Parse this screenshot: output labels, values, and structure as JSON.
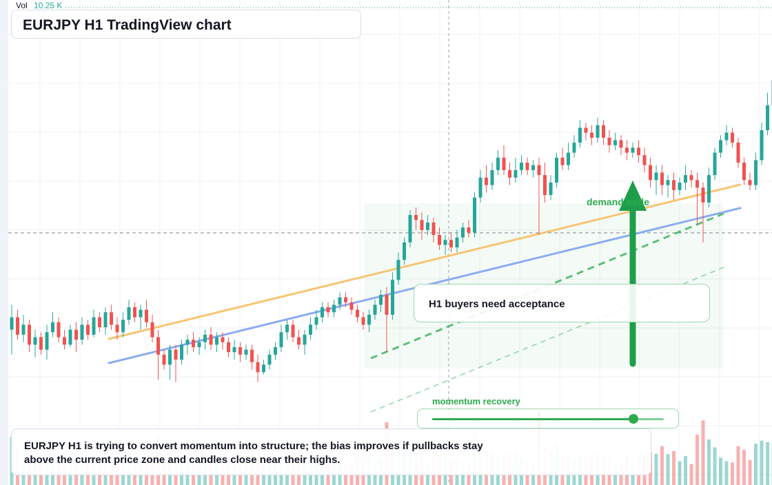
{
  "volume": {
    "label": "Vol",
    "value": "10.25 K"
  },
  "title": "EURJPY H1 TradingView chart",
  "annotations": {
    "demand_label": "demand node",
    "callout": "H1 buyers need acceptance",
    "momentum_label": "momentum recovery",
    "momentum_level": 0.87
  },
  "note": {
    "line1": "EURJPY H1 is trying to convert momentum into structure; the bias improves if pullbacks stay",
    "line2": "above the current price zone and candles close near their highs."
  },
  "colors": {
    "up": "#26a69a",
    "down": "#ef5350",
    "orange_line": "#f5c26b",
    "blue_line": "#7fa3ee",
    "green": "#2eaa4f",
    "arrow": "#1e9e4a"
  },
  "chart_data": {
    "type": "candlestick",
    "symbol": "EURJPY",
    "timeframe": "H1",
    "price_scale": "relative",
    "candles": [
      [
        50,
        55,
        40,
        60
      ],
      [
        55,
        48,
        46,
        58
      ],
      [
        48,
        52,
        45,
        56
      ],
      [
        52,
        44,
        41,
        54
      ],
      [
        44,
        47,
        39,
        50
      ],
      [
        47,
        42,
        40,
        49
      ],
      [
        42,
        49,
        38,
        52
      ],
      [
        49,
        53,
        47,
        57
      ],
      [
        53,
        47,
        45,
        55
      ],
      [
        47,
        44,
        42,
        50
      ],
      [
        44,
        50,
        43,
        52
      ],
      [
        50,
        46,
        41,
        53
      ],
      [
        46,
        52,
        44,
        55
      ],
      [
        52,
        48,
        46,
        54
      ],
      [
        48,
        55,
        47,
        58
      ],
      [
        55,
        51,
        49,
        57
      ],
      [
        51,
        57,
        48,
        59
      ],
      [
        57,
        52,
        50,
        60
      ],
      [
        52,
        49,
        46,
        55
      ],
      [
        49,
        54,
        47,
        57
      ],
      [
        54,
        59,
        52,
        62
      ],
      [
        59,
        55,
        53,
        61
      ],
      [
        55,
        58,
        50,
        60
      ],
      [
        58,
        53,
        51,
        62
      ],
      [
        53,
        47,
        45,
        56
      ],
      [
        47,
        40,
        30,
        50
      ],
      [
        40,
        36,
        34,
        42
      ],
      [
        36,
        42,
        30,
        44
      ],
      [
        42,
        38,
        29,
        44
      ],
      [
        38,
        44,
        36,
        46
      ],
      [
        44,
        46,
        40,
        48
      ],
      [
        46,
        43,
        41,
        49
      ],
      [
        43,
        45,
        40,
        47
      ],
      [
        45,
        48,
        42,
        50
      ],
      [
        48,
        44,
        42,
        51
      ],
      [
        44,
        47,
        41,
        49
      ],
      [
        47,
        45,
        42,
        49
      ],
      [
        45,
        41,
        39,
        47
      ],
      [
        41,
        43,
        38,
        46
      ],
      [
        43,
        40,
        37,
        45
      ],
      [
        40,
        42,
        38,
        44
      ],
      [
        42,
        37,
        34,
        44
      ],
      [
        37,
        33,
        29,
        40
      ],
      [
        33,
        36,
        32,
        38
      ],
      [
        36,
        40,
        34,
        42
      ],
      [
        40,
        43,
        38,
        45
      ],
      [
        43,
        49,
        41,
        52
      ],
      [
        49,
        52,
        46,
        54
      ],
      [
        52,
        47,
        45,
        54
      ],
      [
        47,
        44,
        42,
        50
      ],
      [
        44,
        48,
        40,
        50
      ],
      [
        48,
        52,
        46,
        55
      ],
      [
        52,
        55,
        50,
        58
      ],
      [
        55,
        59,
        53,
        61
      ],
      [
        59,
        57,
        55,
        61
      ],
      [
        57,
        60,
        55,
        62
      ],
      [
        60,
        63,
        58,
        65
      ],
      [
        63,
        61,
        59,
        65
      ],
      [
        61,
        58,
        56,
        63
      ],
      [
        58,
        55,
        53,
        60
      ],
      [
        55,
        52,
        50,
        57
      ],
      [
        52,
        56,
        49,
        58
      ],
      [
        56,
        60,
        54,
        62
      ],
      [
        60,
        64,
        57,
        66
      ],
      [
        64,
        56,
        41,
        67
      ],
      [
        56,
        70,
        54,
        73
      ],
      [
        70,
        78,
        68,
        81
      ],
      [
        78,
        85,
        76,
        87
      ],
      [
        85,
        96,
        83,
        98
      ],
      [
        96,
        94,
        90,
        99
      ],
      [
        94,
        90,
        86,
        97
      ],
      [
        90,
        93,
        88,
        96
      ],
      [
        93,
        88,
        85,
        95
      ],
      [
        88,
        84,
        82,
        91
      ],
      [
        84,
        86,
        80,
        88
      ],
      [
        86,
        83,
        81,
        89
      ],
      [
        83,
        87,
        81,
        90
      ],
      [
        87,
        91,
        85,
        93
      ],
      [
        91,
        89,
        87,
        94
      ],
      [
        89,
        103,
        87,
        105
      ],
      [
        103,
        111,
        101,
        114
      ],
      [
        111,
        108,
        105,
        116
      ],
      [
        108,
        114,
        106,
        117
      ],
      [
        114,
        119,
        112,
        122
      ],
      [
        119,
        114,
        112,
        124
      ],
      [
        114,
        111,
        108,
        117
      ],
      [
        111,
        114,
        109,
        119
      ],
      [
        114,
        117,
        112,
        120
      ],
      [
        117,
        114,
        112,
        119
      ],
      [
        114,
        116,
        111,
        118
      ],
      [
        116,
        112,
        88,
        119
      ],
      [
        112,
        104,
        101,
        117
      ],
      [
        104,
        109,
        102,
        112
      ],
      [
        109,
        119,
        107,
        121
      ],
      [
        119,
        116,
        114,
        123
      ],
      [
        116,
        121,
        114,
        125
      ],
      [
        121,
        125,
        119,
        128
      ],
      [
        125,
        131,
        123,
        134
      ],
      [
        131,
        129,
        126,
        133
      ],
      [
        129,
        127,
        124,
        132
      ],
      [
        127,
        132,
        125,
        135
      ],
      [
        132,
        127,
        124,
        134
      ],
      [
        127,
        124,
        121,
        130
      ],
      [
        124,
        126,
        122,
        129
      ],
      [
        126,
        123,
        120,
        128
      ],
      [
        123,
        121,
        118,
        126
      ],
      [
        121,
        123,
        119,
        125
      ],
      [
        123,
        120,
        117,
        126
      ],
      [
        120,
        116,
        113,
        123
      ],
      [
        116,
        110,
        107,
        119
      ],
      [
        110,
        113,
        104,
        116
      ],
      [
        113,
        108,
        104,
        116
      ],
      [
        108,
        110,
        103,
        112
      ],
      [
        110,
        106,
        102,
        113
      ],
      [
        106,
        109,
        104,
        111
      ],
      [
        109,
        112,
        106,
        116
      ],
      [
        112,
        110,
        107,
        114
      ],
      [
        110,
        107,
        92,
        113
      ],
      [
        107,
        101,
        85,
        109
      ],
      [
        101,
        112,
        99,
        115
      ],
      [
        112,
        121,
        110,
        123
      ],
      [
        121,
        126,
        119,
        128
      ],
      [
        126,
        129,
        124,
        132
      ],
      [
        129,
        125,
        123,
        131
      ],
      [
        125,
        117,
        115,
        127
      ],
      [
        117,
        110,
        108,
        119
      ],
      [
        110,
        108,
        106,
        113
      ],
      [
        108,
        118,
        106,
        121
      ],
      [
        118,
        130,
        116,
        133
      ],
      [
        130,
        140,
        128,
        145
      ],
      [
        140,
        150,
        138,
        155
      ]
    ],
    "trendlines": [
      "orange rising resistance",
      "blue rising support",
      "green dashed channel"
    ],
    "volume_visible": true,
    "grid": true
  }
}
